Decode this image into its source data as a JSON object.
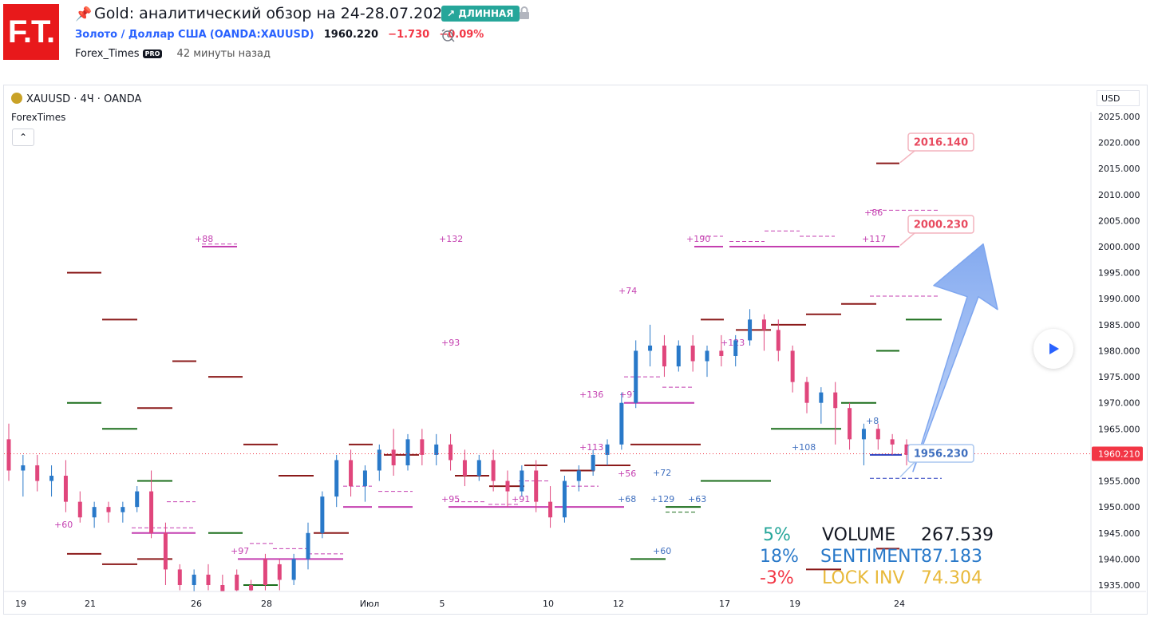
{
  "header": {
    "logo_text": "F.T.",
    "title": "Gold: аналитический обзор на 24-28.07.2023.",
    "badge": "↗ ДЛИННАЯ",
    "symbol_name": "Золото / Доллар США",
    "symbol_code": "(OANDA:XAUUSD)",
    "price": "1960.220",
    "change": "−1.730",
    "change_pct": "−0.09%",
    "author": "Forex_Times",
    "pro_label": "PRO",
    "time_ago": "42 минуты назад"
  },
  "chart": {
    "legend": "XAUUSD · 4Ч · OANDA",
    "indicator": "ForexTimes",
    "currency": "USD"
  },
  "stats": {
    "row1": {
      "pct": "5%",
      "label": "VOLUME",
      "value": "267.539"
    },
    "row2": {
      "pct": "18%",
      "label": "SENTIMENT",
      "value": "87.183"
    },
    "row3": {
      "pct": "-3%",
      "label": "LOCK INV",
      "value": "74.304"
    }
  },
  "colors": {
    "up": "#2979c9",
    "down": "#e0467c",
    "resistance": "#8b1a1a",
    "support": "#1b6e1b",
    "magenta": "#c43fb0",
    "label_red": "#e84a5f",
    "label_blue": "#3f6fbf",
    "volume": "#26a69a",
    "sentiment": "#2979c9",
    "lock": "#f23645",
    "lock_value": "#e8b93a"
  },
  "chart_data": {
    "type": "candlestick",
    "symbol": "XAUUSD",
    "timeframe": "4Ч",
    "ylim": [
      1933,
      2028
    ],
    "y_ticks": [
      "1935.000",
      "1940.000",
      "1945.000",
      "1950.000",
      "1955.000",
      "1960.000",
      "1965.000",
      "1970.000",
      "1975.000",
      "1980.000",
      "1985.000",
      "1990.000",
      "1995.000",
      "2000.000",
      "2005.000",
      "2010.000",
      "2015.000",
      "2020.000",
      "2025.000"
    ],
    "x_ticks": [
      "19",
      "21",
      "26",
      "28",
      "Июл",
      "5",
      "10",
      "12",
      "17",
      "19",
      "24"
    ],
    "current_price": "1960.210",
    "price_labels": [
      "2016.140",
      "2000.230",
      "1956.230"
    ],
    "target_arrow": {
      "from": 1956.2,
      "to": 2000.2
    },
    "candles_ohlc": [
      [
        1963,
        1966,
        1955,
        1957
      ],
      [
        1957,
        1960,
        1952,
        1958
      ],
      [
        1958,
        1960,
        1953,
        1955
      ],
      [
        1955,
        1958,
        1952,
        1956
      ],
      [
        1956,
        1959,
        1949,
        1951
      ],
      [
        1951,
        1953,
        1947,
        1948
      ],
      [
        1948,
        1951,
        1946,
        1950
      ],
      [
        1950,
        1951,
        1947,
        1949
      ],
      [
        1949,
        1951,
        1947,
        1950
      ],
      [
        1950,
        1954,
        1949,
        1953
      ],
      [
        1953,
        1957,
        1944,
        1945
      ],
      [
        1945,
        1947,
        1935,
        1938
      ],
      [
        1938,
        1939,
        1934,
        1935
      ],
      [
        1935,
        1938,
        1932,
        1937
      ],
      [
        1937,
        1939,
        1934,
        1935
      ],
      [
        1935,
        1937,
        1932,
        1933
      ],
      [
        1937,
        1938,
        1933,
        1934
      ],
      [
        1935,
        1936,
        1933,
        1934
      ],
      [
        1940,
        1941,
        1934,
        1935
      ],
      [
        1939,
        1940,
        1934,
        1936
      ],
      [
        1936,
        1941,
        1935,
        1940
      ],
      [
        1940,
        1947,
        1938,
        1945
      ],
      [
        1945,
        1953,
        1944,
        1952
      ],
      [
        1952,
        1960,
        1950,
        1959
      ],
      [
        1959,
        1961,
        1952,
        1954
      ],
      [
        1954,
        1958,
        1951,
        1957
      ],
      [
        1957,
        1962,
        1955,
        1961
      ],
      [
        1961,
        1965,
        1956,
        1958
      ],
      [
        1958,
        1964,
        1957,
        1963
      ],
      [
        1963,
        1965,
        1958,
        1960
      ],
      [
        1960,
        1964,
        1958,
        1962
      ],
      [
        1962,
        1964,
        1957,
        1959
      ],
      [
        1959,
        1961,
        1954,
        1956
      ],
      [
        1956,
        1960,
        1955,
        1959
      ],
      [
        1959,
        1961,
        1953,
        1955
      ],
      [
        1955,
        1957,
        1950,
        1953
      ],
      [
        1953,
        1958,
        1952,
        1957
      ],
      [
        1957,
        1959,
        1949,
        1951
      ],
      [
        1951,
        1954,
        1946,
        1948
      ],
      [
        1948,
        1956,
        1947,
        1955
      ],
      [
        1955,
        1958,
        1953,
        1957
      ],
      [
        1957,
        1961,
        1956,
        1960
      ],
      [
        1960,
        1963,
        1958,
        1962
      ],
      [
        1962,
        1972,
        1961,
        1970
      ],
      [
        1970,
        1982,
        1969,
        1980
      ],
      [
        1980,
        1985,
        1977,
        1981
      ],
      [
        1981,
        1983,
        1975,
        1977
      ],
      [
        1977,
        1982,
        1976,
        1981
      ],
      [
        1981,
        1983,
        1976,
        1978
      ],
      [
        1978,
        1981,
        1975,
        1980
      ],
      [
        1980,
        1983,
        1977,
        1979
      ],
      [
        1979,
        1983,
        1977,
        1982
      ],
      [
        1982,
        1988,
        1981,
        1986
      ],
      [
        1986,
        1987,
        1980,
        1984
      ],
      [
        1984,
        1986,
        1978,
        1980
      ],
      [
        1980,
        1981,
        1972,
        1974
      ],
      [
        1974,
        1975,
        1968,
        1970
      ],
      [
        1970,
        1973,
        1966,
        1972
      ],
      [
        1972,
        1974,
        1962,
        1969
      ],
      [
        1969,
        1970,
        1961,
        1963
      ],
      [
        1963,
        1966,
        1958,
        1965
      ],
      [
        1965,
        1966,
        1961,
        1963
      ],
      [
        1963,
        1964,
        1960,
        1962
      ],
      [
        1962,
        1963,
        1958,
        1960
      ]
    ]
  }
}
